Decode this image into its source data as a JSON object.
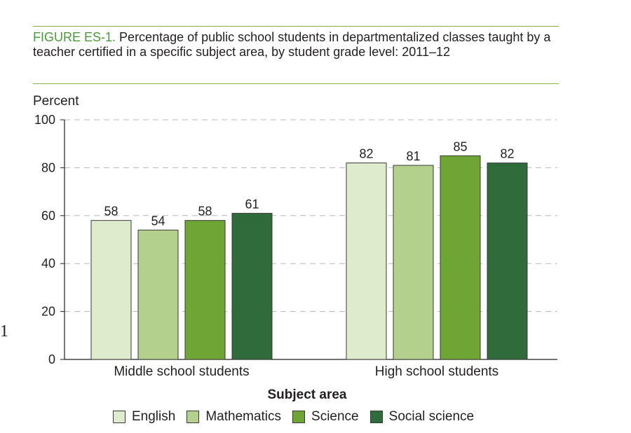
{
  "figure": {
    "label": "FIGURE ES-1.",
    "title": "Percentage of public school students in departmentalized classes taught by a teacher certified in a specific subject area, by student grade level: 2011–12"
  },
  "margin_mark": "1",
  "chart_data": {
    "type": "bar",
    "title": "Percentage of public school students in departmentalized classes taught by a teacher certified in a specific subject area, by student grade level: 2011–12",
    "ylabel": "Percent",
    "xlabel": "Subject area",
    "ylim": [
      0,
      100
    ],
    "yticks": [
      0,
      20,
      40,
      60,
      80,
      100
    ],
    "grid": "dashed horizontal",
    "legend_position": "bottom",
    "categories": [
      "Middle school students",
      "High school students"
    ],
    "series": [
      {
        "name": "English",
        "values": [
          58,
          82
        ],
        "color": "#deebcd"
      },
      {
        "name": "Mathematics",
        "values": [
          54,
          81
        ],
        "color": "#b3d08d"
      },
      {
        "name": "Science",
        "values": [
          58,
          85
        ],
        "color": "#6ea535"
      },
      {
        "name": "Social science",
        "values": [
          61,
          82
        ],
        "color": "#2f6b3b"
      }
    ]
  }
}
